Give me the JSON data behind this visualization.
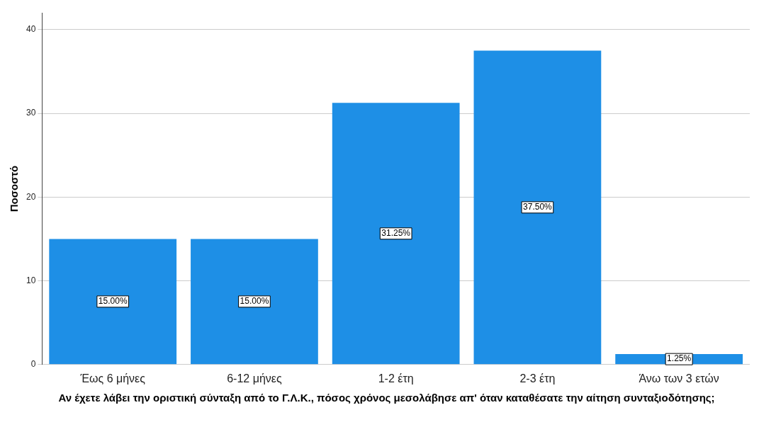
{
  "chart_data": {
    "type": "bar",
    "xlabel": "Αν έχετε λάβει την οριστική σύνταξη από το Γ.Λ.Κ., πόσος χρόνος μεσολάβησε απ' όταν καταθέσατε την αίτηση συνταξιοδότησης;",
    "ylabel": "Ποσοστό",
    "categories": [
      "Έως 6 μήνες",
      "6-12 μήνες",
      "1-2 έτη",
      "2-3 έτη",
      "Άνω των 3 ετών"
    ],
    "values": [
      15,
      15,
      31.25,
      37.5,
      1.25
    ],
    "value_labels": [
      "15.00%",
      "15.00%",
      "31.25%",
      "37.50%",
      "1.25%"
    ],
    "color": "#1e8fe6",
    "ylim": [
      0,
      42
    ],
    "yticks": [
      0,
      10,
      20,
      30,
      40
    ],
    "grid": "y",
    "legend": false
  }
}
